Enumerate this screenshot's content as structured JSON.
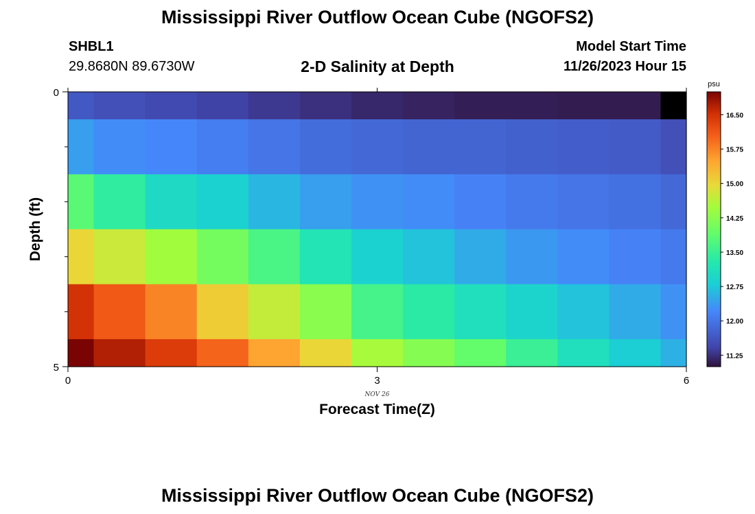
{
  "header": {
    "title": "Mississippi River Outflow Ocean Cube (NGOFS2)",
    "station_name": "SHBL1",
    "station_coords": "29.8680N  89.6730W",
    "subtitle": "2-D Salinity at Depth",
    "model_start_label": "Model Start Time",
    "model_start_value": "11/26/2023 Hour 15"
  },
  "footer": {
    "title": "Mississippi River Outflow Ocean Cube (NGOFS2)"
  },
  "chart_data": {
    "type": "heatmap",
    "title": "2-D Salinity at Depth",
    "xlabel": "Forecast Time(Z)",
    "ylabel": "Depth (ft)",
    "x_ticks": [
      "0",
      "3",
      "6"
    ],
    "x_tick_values": [
      0,
      3,
      6
    ],
    "y_ticks": [
      "0",
      "5"
    ],
    "y_tick_values": [
      0,
      5
    ],
    "xlim": [
      0,
      6
    ],
    "ylim": [
      0,
      5
    ],
    "date_label": "NOV 26",
    "colorbar": {
      "unit": "psu",
      "ticks": [
        "16.50",
        "15.75",
        "15.00",
        "14.25",
        "13.50",
        "12.75",
        "12.00",
        "11.25"
      ],
      "tick_values": [
        16.5,
        15.75,
        15.0,
        14.25,
        13.5,
        12.75,
        12.0,
        11.25
      ],
      "range": [
        11.0,
        17.0
      ]
    },
    "x_centers": [
      0,
      0.5,
      1,
      1.5,
      2,
      2.5,
      3,
      3.5,
      4,
      4.5,
      5,
      5.5,
      6
    ],
    "depth_rows": [
      0,
      1,
      2,
      3,
      4,
      5
    ],
    "values": [
      [
        11.65,
        11.55,
        11.48,
        11.4,
        11.32,
        11.25,
        11.18,
        11.14,
        11.1,
        11.1,
        11.08,
        11.08,
        10.9
      ],
      [
        12.4,
        12.25,
        12.2,
        12.1,
        12.0,
        11.9,
        11.85,
        11.8,
        11.8,
        11.75,
        11.72,
        11.68,
        11.55
      ],
      [
        13.8,
        13.4,
        13.0,
        12.85,
        12.6,
        12.4,
        12.3,
        12.25,
        12.15,
        12.05,
        12.0,
        11.95,
        11.85
      ],
      [
        15.0,
        14.75,
        14.45,
        14.05,
        13.65,
        13.2,
        12.85,
        12.7,
        12.5,
        12.35,
        12.25,
        12.15,
        12.05
      ],
      [
        16.5,
        16.1,
        15.75,
        15.1,
        14.7,
        14.25,
        13.6,
        13.35,
        13.1,
        12.9,
        12.7,
        12.5,
        12.3
      ],
      [
        17.0,
        16.7,
        16.4,
        16.0,
        15.5,
        15.0,
        14.5,
        14.2,
        13.9,
        13.5,
        13.1,
        12.8,
        12.55
      ]
    ]
  }
}
